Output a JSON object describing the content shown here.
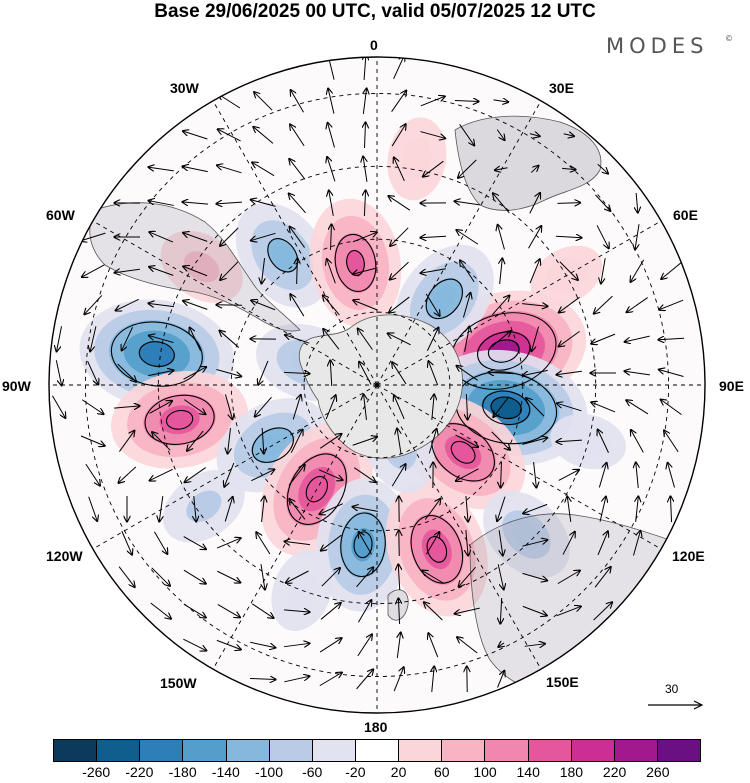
{
  "title": "Base 29/06/2025 00 UTC, valid 05/07/2025 12 UTC",
  "brand": "MODES",
  "brand_mark": "©",
  "longitude_labels": {
    "top": "0",
    "top_right": "30E",
    "upper_right": "60E",
    "right": "90E",
    "lower_right": "120E",
    "bottom_right": "150E",
    "bottom": "180",
    "bottom_left": "150W",
    "lower_left": "120W",
    "left": "90W",
    "upper_left": "60W",
    "top_left": "30W"
  },
  "reference_vector": "30",
  "colorbar": {
    "colors": [
      "#0b3a5c",
      "#0f5e8e",
      "#2e7fb8",
      "#549ecb",
      "#85b8dc",
      "#b9cbe6",
      "#e2e2f0",
      "#ffffff",
      "#fbd6d9",
      "#f8b4c3",
      "#f187ae",
      "#e5579c",
      "#cc2f93",
      "#a0198d",
      "#6a1082"
    ],
    "tick_labels": [
      "-260",
      "-220",
      "-180",
      "-140",
      "-100",
      "-60",
      "-20",
      "20",
      "60",
      "100",
      "140",
      "180",
      "220",
      "260"
    ]
  },
  "anomaly_centers": [
    {
      "lon_deg": 75,
      "colat_deg": 36,
      "value": 230
    },
    {
      "lon_deg": 100,
      "colat_deg": 36,
      "value": -220
    },
    {
      "lon_deg": -82,
      "colat_deg": 61,
      "value": -200
    },
    {
      "lon_deg": -56,
      "colat_deg": 58,
      "value": 60
    },
    {
      "lon_deg": -36,
      "colat_deg": 44,
      "value": -110
    },
    {
      "lon_deg": -10,
      "colat_deg": 34,
      "value": 140
    },
    {
      "lon_deg": 38,
      "colat_deg": 30,
      "value": -120
    },
    {
      "lon_deg": 10,
      "colat_deg": 63,
      "value": 50
    },
    {
      "lon_deg": -72,
      "colat_deg": 20,
      "value": -90
    },
    {
      "lon_deg": -100,
      "colat_deg": 55,
      "value": 160
    },
    {
      "lon_deg": -120,
      "colat_deg": 33,
      "value": -120
    },
    {
      "lon_deg": -150,
      "colat_deg": 33,
      "value": 170
    },
    {
      "lon_deg": -175,
      "colat_deg": 44,
      "value": -150
    },
    {
      "lon_deg": -125,
      "colat_deg": 58,
      "value": -60
    },
    {
      "lon_deg": -160,
      "colat_deg": 60,
      "value": -50
    },
    {
      "lon_deg": 128,
      "colat_deg": 30,
      "value": 160
    },
    {
      "lon_deg": 160,
      "colat_deg": 48,
      "value": 160
    },
    {
      "lon_deg": 135,
      "colat_deg": 58,
      "value": -80
    },
    {
      "lon_deg": 160,
      "colat_deg": 18,
      "value": -70
    },
    {
      "lon_deg": 60,
      "colat_deg": 60,
      "value": 40
    },
    {
      "lon_deg": 105,
      "colat_deg": 60,
      "value": -40
    },
    {
      "lon_deg": -5,
      "colat_deg": 12,
      "value": 30
    }
  ]
}
